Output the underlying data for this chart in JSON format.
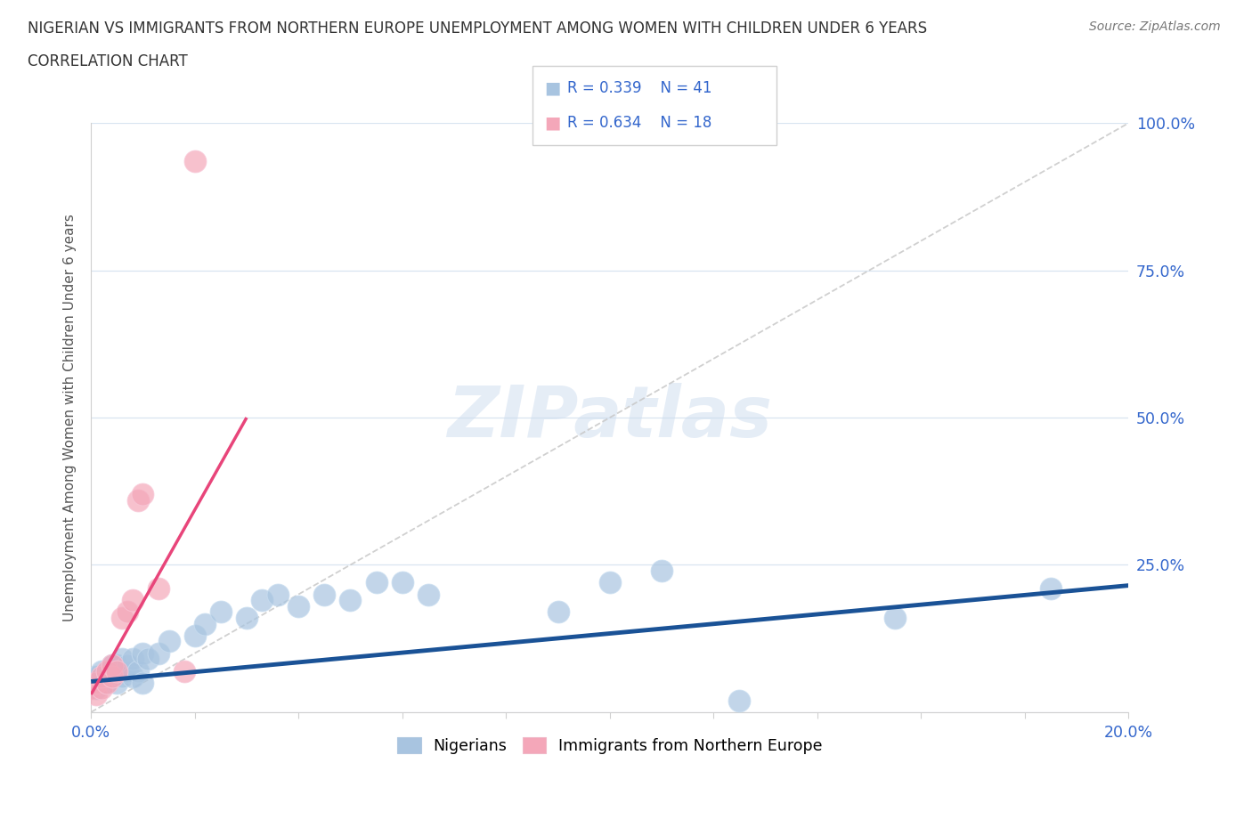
{
  "title_line1": "NIGERIAN VS IMMIGRANTS FROM NORTHERN EUROPE UNEMPLOYMENT AMONG WOMEN WITH CHILDREN UNDER 6 YEARS",
  "title_line2": "CORRELATION CHART",
  "source": "Source: ZipAtlas.com",
  "ylabel": "Unemployment Among Women with Children Under 6 years",
  "xlim": [
    0.0,
    0.2
  ],
  "ylim": [
    0.0,
    1.0
  ],
  "background_color": "#ffffff",
  "blue_color": "#a8c4e0",
  "pink_color": "#f4a7b9",
  "blue_line_color": "#1a5296",
  "pink_line_color": "#e8457a",
  "trendline_dashed_color": "#c8c8c8",
  "nigerians_x": [
    0.0,
    0.001,
    0.001,
    0.002,
    0.002,
    0.003,
    0.003,
    0.004,
    0.004,
    0.005,
    0.005,
    0.006,
    0.006,
    0.007,
    0.007,
    0.008,
    0.008,
    0.009,
    0.01,
    0.01,
    0.011,
    0.013,
    0.015,
    0.02,
    0.022,
    0.025,
    0.03,
    0.033,
    0.036,
    0.04,
    0.045,
    0.05,
    0.055,
    0.06,
    0.065,
    0.09,
    0.1,
    0.11,
    0.125,
    0.155,
    0.185
  ],
  "nigerians_y": [
    0.05,
    0.04,
    0.06,
    0.05,
    0.07,
    0.05,
    0.07,
    0.06,
    0.08,
    0.05,
    0.08,
    0.06,
    0.09,
    0.07,
    0.08,
    0.06,
    0.09,
    0.07,
    0.05,
    0.1,
    0.09,
    0.1,
    0.12,
    0.13,
    0.15,
    0.17,
    0.16,
    0.19,
    0.2,
    0.18,
    0.2,
    0.19,
    0.22,
    0.22,
    0.2,
    0.17,
    0.22,
    0.24,
    0.02,
    0.16,
    0.21
  ],
  "immigrants_x": [
    0.0,
    0.001,
    0.001,
    0.002,
    0.002,
    0.003,
    0.003,
    0.004,
    0.004,
    0.005,
    0.006,
    0.007,
    0.008,
    0.009,
    0.01,
    0.013,
    0.018,
    0.02
  ],
  "immigrants_y": [
    0.04,
    0.03,
    0.05,
    0.04,
    0.06,
    0.05,
    0.07,
    0.06,
    0.08,
    0.07,
    0.16,
    0.17,
    0.19,
    0.36,
    0.37,
    0.21,
    0.07,
    0.935
  ],
  "blue_trend_x0": 0.0,
  "blue_trend_y0": 0.052,
  "blue_trend_x1": 0.2,
  "blue_trend_y1": 0.215,
  "pink_trend_x0": 0.0,
  "pink_trend_y0": 0.03,
  "pink_trend_x1": 0.03,
  "pink_trend_y1": 0.5
}
